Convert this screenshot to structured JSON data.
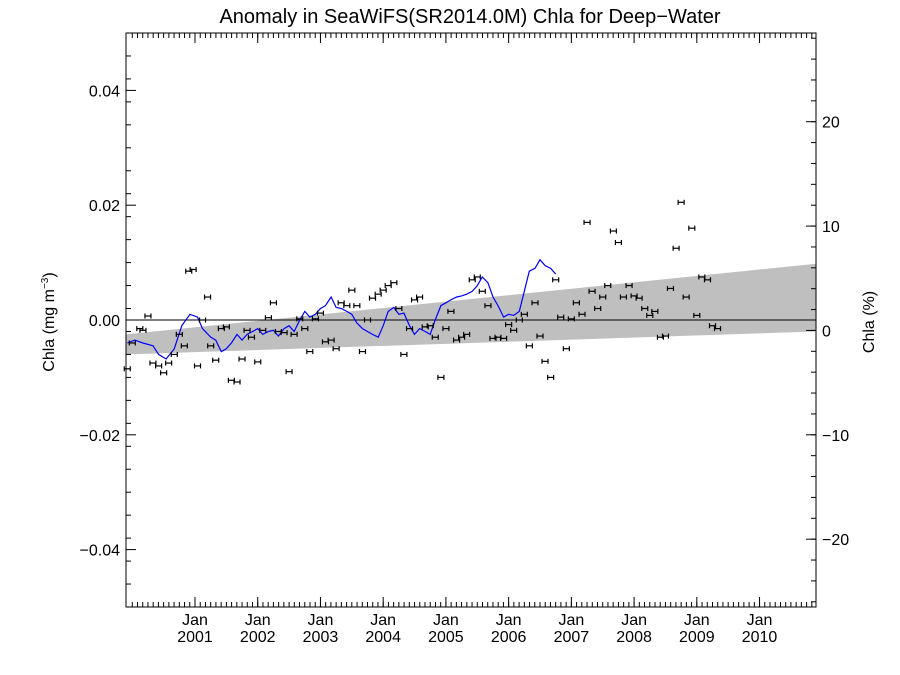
{
  "chart_data": {
    "type": "scatter",
    "title": "Anomaly in SeaWiFS(SR2014.0M) Chla for Deep−Water",
    "ylabel_left": "Chla (mg m",
    "ylabel_left_sup": "−3",
    "ylabel_left_close": ")",
    "ylabel_right": "Chla (%)",
    "xlim": [
      1999.9,
      2010.9
    ],
    "ylim_left": [
      -0.05,
      0.05
    ],
    "ylim_right": [
      -26.5,
      28.5
    ],
    "y_ticks_left": [
      {
        "value": 0.04,
        "label": "0.04"
      },
      {
        "value": 0.02,
        "label": "0.02"
      },
      {
        "value": 0.0,
        "label": "0.00"
      },
      {
        "value": -0.02,
        "label": "−0.02"
      },
      {
        "value": -0.04,
        "label": "−0.04"
      }
    ],
    "y_ticks_right": [
      {
        "value": 20,
        "label": "20"
      },
      {
        "value": 10,
        "label": "10"
      },
      {
        "value": 0,
        "label": "0"
      },
      {
        "value": -10,
        "label": "−10"
      },
      {
        "value": -20,
        "label": "−20"
      }
    ],
    "x_ticks": [
      {
        "value": 2001.0,
        "month": "Jan",
        "year": "2001"
      },
      {
        "value": 2002.0,
        "month": "Jan",
        "year": "2002"
      },
      {
        "value": 2003.0,
        "month": "Jan",
        "year": "2003"
      },
      {
        "value": 2004.0,
        "month": "Jan",
        "year": "2004"
      },
      {
        "value": 2005.0,
        "month": "Jan",
        "year": "2005"
      },
      {
        "value": 2006.0,
        "month": "Jan",
        "year": "2006"
      },
      {
        "value": 2007.0,
        "month": "Jan",
        "year": "2007"
      },
      {
        "value": 2008.0,
        "month": "Jan",
        "year": "2008"
      },
      {
        "value": 2009.0,
        "month": "Jan",
        "year": "2009"
      },
      {
        "value": 2010.0,
        "month": "Jan",
        "year": "2010"
      }
    ],
    "zero_line": 0.0,
    "trend_band": {
      "upper": [
        [
          1999.9,
          -0.0025
        ],
        [
          2010.9,
          0.0098
        ]
      ],
      "lower": [
        [
          1999.9,
          -0.006
        ],
        [
          2010.9,
          -0.002
        ]
      ]
    },
    "series": [
      {
        "marker": "errorbar",
        "color": "#000000",
        "points": [
          [
            1999.92,
            -0.0085
          ],
          [
            2000.0,
            -0.004
          ],
          [
            2000.12,
            -0.0015
          ],
          [
            2000.17,
            -0.0018
          ],
          [
            2000.25,
            0.0007
          ],
          [
            2000.33,
            -0.0075
          ],
          [
            2000.42,
            -0.008
          ],
          [
            2000.5,
            -0.0092
          ],
          [
            2000.58,
            -0.0075
          ],
          [
            2000.67,
            -0.006
          ],
          [
            2000.75,
            -0.0025
          ],
          [
            2000.83,
            -0.0045
          ],
          [
            2000.9,
            0.0085
          ],
          [
            2000.97,
            0.0088
          ],
          [
            2001.04,
            -0.008
          ],
          [
            2001.12,
            0.0
          ],
          [
            2001.2,
            0.004
          ],
          [
            2001.25,
            -0.0045
          ],
          [
            2001.33,
            -0.007
          ],
          [
            2001.42,
            -0.0015
          ],
          [
            2001.5,
            -0.0012
          ],
          [
            2001.58,
            -0.0105
          ],
          [
            2001.67,
            -0.0108
          ],
          [
            2001.75,
            -0.0068
          ],
          [
            2001.83,
            -0.0018
          ],
          [
            2001.9,
            -0.003
          ],
          [
            2002.0,
            -0.0073
          ],
          [
            2002.08,
            -0.0018
          ],
          [
            2002.17,
            0.0004
          ],
          [
            2002.25,
            0.003
          ],
          [
            2002.33,
            -0.002
          ],
          [
            2002.42,
            -0.0022
          ],
          [
            2002.5,
            -0.009
          ],
          [
            2002.58,
            -0.0025
          ],
          [
            2002.67,
            0.0002
          ],
          [
            2002.75,
            -0.0015
          ],
          [
            2002.83,
            -0.0055
          ],
          [
            2002.92,
            0.0002
          ],
          [
            2003.0,
            0.0012
          ],
          [
            2003.08,
            -0.0038
          ],
          [
            2003.17,
            -0.0035
          ],
          [
            2003.25,
            -0.005
          ],
          [
            2003.33,
            0.003
          ],
          [
            2003.42,
            0.0025
          ],
          [
            2003.5,
            0.0052
          ],
          [
            2003.58,
            0.0025
          ],
          [
            2003.67,
            -0.0055
          ],
          [
            2003.75,
            0.0
          ],
          [
            2003.83,
            0.0038
          ],
          [
            2003.92,
            0.0045
          ],
          [
            2004.0,
            0.0052
          ],
          [
            2004.08,
            0.006
          ],
          [
            2004.17,
            0.0065
          ],
          [
            2004.25,
            0.002
          ],
          [
            2004.33,
            -0.006
          ],
          [
            2004.42,
            -0.0015
          ],
          [
            2004.5,
            0.0035
          ],
          [
            2004.58,
            0.004
          ],
          [
            2004.67,
            -0.0012
          ],
          [
            2004.75,
            -0.001
          ],
          [
            2004.83,
            -0.003
          ],
          [
            2004.92,
            -0.01
          ],
          [
            2005.0,
            -0.0015
          ],
          [
            2005.08,
            0.0015
          ],
          [
            2005.17,
            -0.0035
          ],
          [
            2005.25,
            -0.003
          ],
          [
            2005.33,
            -0.0025
          ],
          [
            2005.42,
            0.007
          ],
          [
            2005.5,
            0.0075
          ],
          [
            2005.58,
            0.005
          ],
          [
            2005.67,
            0.0025
          ],
          [
            2005.75,
            -0.0032
          ],
          [
            2005.83,
            -0.003
          ],
          [
            2005.92,
            -0.0032
          ],
          [
            2006.0,
            -0.0008
          ],
          [
            2006.08,
            -0.0018
          ],
          [
            2006.17,
            0.0
          ],
          [
            2006.25,
            0.001
          ],
          [
            2006.33,
            -0.0045
          ],
          [
            2006.42,
            0.003
          ],
          [
            2006.5,
            -0.0028
          ],
          [
            2006.58,
            -0.0072
          ],
          [
            2006.67,
            -0.01
          ],
          [
            2006.75,
            0.007
          ],
          [
            2006.83,
            0.0005
          ],
          [
            2006.92,
            -0.005
          ],
          [
            2007.0,
            0.0002
          ],
          [
            2007.08,
            0.003
          ],
          [
            2007.17,
            0.001
          ],
          [
            2007.25,
            0.017
          ],
          [
            2007.33,
            0.005
          ],
          [
            2007.42,
            0.002
          ],
          [
            2007.5,
            0.004
          ],
          [
            2007.58,
            0.006
          ],
          [
            2007.67,
            0.0155
          ],
          [
            2007.75,
            0.0135
          ],
          [
            2007.83,
            0.004
          ],
          [
            2007.92,
            0.006
          ],
          [
            2008.0,
            0.0042
          ],
          [
            2008.08,
            0.0038
          ],
          [
            2008.17,
            0.002
          ],
          [
            2008.25,
            0.0008
          ],
          [
            2008.33,
            0.0015
          ],
          [
            2008.42,
            -0.003
          ],
          [
            2008.5,
            -0.0028
          ],
          [
            2008.58,
            0.0055
          ],
          [
            2008.67,
            0.0125
          ],
          [
            2008.75,
            0.0205
          ],
          [
            2008.83,
            0.004
          ],
          [
            2008.92,
            0.016
          ],
          [
            2009.0,
            0.0008
          ],
          [
            2009.08,
            0.0075
          ],
          [
            2009.17,
            0.007
          ],
          [
            2009.25,
            -0.001
          ],
          [
            2009.33,
            -0.0015
          ]
        ]
      },
      {
        "marker": "line",
        "color": "#0000ff",
        "points": [
          [
            1999.92,
            -0.004
          ],
          [
            2000.04,
            -0.0035
          ],
          [
            2000.17,
            -0.004
          ],
          [
            2000.33,
            -0.0045
          ],
          [
            2000.42,
            -0.006
          ],
          [
            2000.54,
            -0.0068
          ],
          [
            2000.67,
            -0.005
          ],
          [
            2000.79,
            -0.001
          ],
          [
            2000.92,
            0.001
          ],
          [
            2001.04,
            0.0005
          ],
          [
            2001.12,
            -0.0015
          ],
          [
            2001.25,
            -0.003
          ],
          [
            2001.33,
            -0.0035
          ],
          [
            2001.42,
            -0.0055
          ],
          [
            2001.5,
            -0.005
          ],
          [
            2001.58,
            -0.004
          ],
          [
            2001.67,
            -0.0025
          ],
          [
            2001.75,
            -0.0035
          ],
          [
            2001.83,
            -0.0025
          ],
          [
            2001.92,
            -0.002
          ],
          [
            2002.0,
            -0.0015
          ],
          [
            2002.08,
            -0.0025
          ],
          [
            2002.17,
            -0.002
          ],
          [
            2002.25,
            -0.0018
          ],
          [
            2002.33,
            -0.0028
          ],
          [
            2002.42,
            -0.0015
          ],
          [
            2002.5,
            -0.001
          ],
          [
            2002.58,
            -0.002
          ],
          [
            2002.67,
            0.0
          ],
          [
            2002.75,
            0.0015
          ],
          [
            2002.83,
            0.0005
          ],
          [
            2002.92,
            0.001
          ],
          [
            2003.0,
            0.002
          ],
          [
            2003.08,
            0.0025
          ],
          [
            2003.17,
            0.004
          ],
          [
            2003.25,
            0.0022
          ],
          [
            2003.33,
            0.002
          ],
          [
            2003.42,
            0.0015
          ],
          [
            2003.5,
            0.001
          ],
          [
            2003.58,
            -0.0005
          ],
          [
            2003.67,
            -0.0015
          ],
          [
            2003.75,
            -0.002
          ],
          [
            2003.83,
            -0.0025
          ],
          [
            2003.92,
            -0.003
          ],
          [
            2004.0,
            -0.001
          ],
          [
            2004.08,
            0.0015
          ],
          [
            2004.17,
            0.0022
          ],
          [
            2004.25,
            0.001
          ],
          [
            2004.33,
            0.0012
          ],
          [
            2004.42,
            -0.001
          ],
          [
            2004.5,
            -0.0025
          ],
          [
            2004.58,
            -0.0015
          ],
          [
            2004.67,
            -0.002
          ],
          [
            2004.75,
            -0.0025
          ],
          [
            2004.83,
            0.0
          ],
          [
            2004.92,
            0.0025
          ],
          [
            2005.0,
            0.003
          ],
          [
            2005.08,
            0.0035
          ],
          [
            2005.17,
            0.004
          ],
          [
            2005.25,
            0.0042
          ],
          [
            2005.33,
            0.0045
          ],
          [
            2005.42,
            0.005
          ],
          [
            2005.5,
            0.006
          ],
          [
            2005.58,
            0.0075
          ],
          [
            2005.67,
            0.0065
          ],
          [
            2005.75,
            0.004
          ],
          [
            2005.83,
            0.0025
          ],
          [
            2005.92,
            0.0005
          ],
          [
            2006.0,
            0.001
          ],
          [
            2006.08,
            0.0008
          ],
          [
            2006.17,
            0.0015
          ],
          [
            2006.25,
            0.005
          ],
          [
            2006.33,
            0.0085
          ],
          [
            2006.42,
            0.009
          ],
          [
            2006.5,
            0.0105
          ],
          [
            2006.58,
            0.0095
          ],
          [
            2006.67,
            0.009
          ],
          [
            2006.75,
            0.008
          ]
        ]
      }
    ]
  }
}
